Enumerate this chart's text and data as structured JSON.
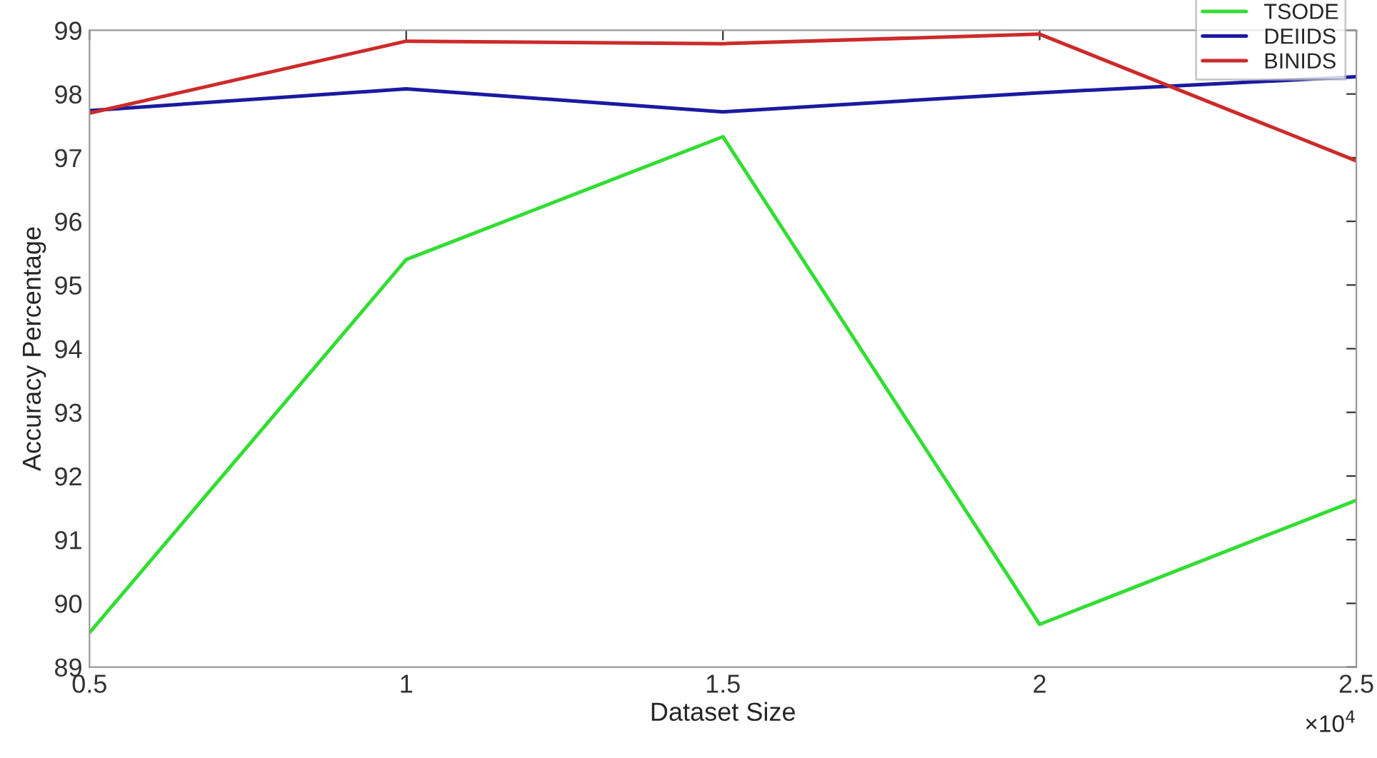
{
  "chart_data": {
    "type": "line",
    "xlabel": "Dataset Size",
    "ylabel": "Accuracy Percentage",
    "annotations": [
      "×10$^{4}$"
    ],
    "x": [
      0.5,
      1,
      1.5,
      2,
      2.5
    ],
    "series": [
      {
        "name": "TSODE",
        "color": "#33dd33",
        "values": [
          89.54,
          95.4,
          97.33,
          89.67,
          91.62
        ]
      },
      {
        "name": "DEIIDS",
        "color": "#1a1aa0",
        "values": [
          97.74,
          98.08,
          97.72,
          98.02,
          98.27
        ]
      },
      {
        "name": "BINIDS",
        "color": "#cc2b2b",
        "values": [
          97.7,
          98.83,
          98.79,
          98.94,
          96.95
        ]
      }
    ],
    "xlim": [
      0.5,
      2.5
    ],
    "xticks": [
      0.5,
      1,
      1.5,
      2,
      2.5
    ],
    "ylim": [
      89,
      99
    ],
    "yticks": [
      89,
      90,
      91,
      92,
      93,
      94,
      95,
      96,
      97,
      98,
      99
    ],
    "grid": false,
    "legend": "top right",
    "marker": "none",
    "line_style": "solid"
  }
}
